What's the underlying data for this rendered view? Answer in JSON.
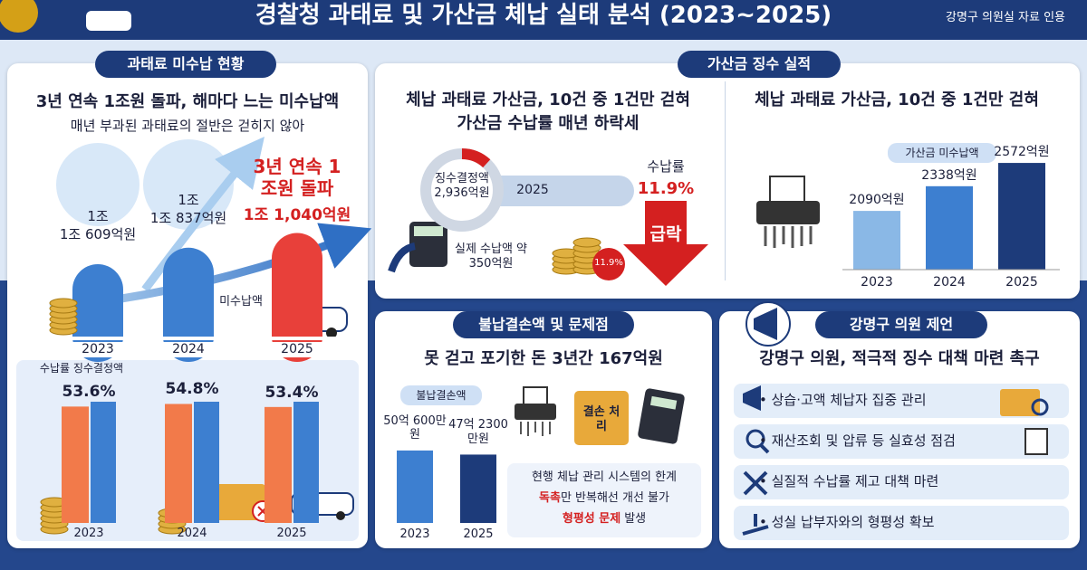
{
  "header": {
    "title": "경찰청 과태료 및 가산금 체납 실태 분석 (2023~2025)",
    "source": "강명구 의원실 자료 인용"
  },
  "unpaid": {
    "tab": "과태료 미수납 현황",
    "headline": "3년 연속 1조원 돌파, 해마다 느는 미수납액",
    "subtitle": "매년 부과된 과태료의 절반은 걷히지 않아",
    "years": [
      "2023",
      "2024",
      "2025"
    ],
    "amount_tops": [
      "1조",
      "1조"
    ],
    "highlight": "3년 연속 1조원 돌파",
    "amounts": [
      10609,
      10837,
      11040
    ],
    "amount_labels": [
      "1조 609억원",
      "1조 837억원",
      "1조 1,040억원"
    ],
    "series_label": "미수납액",
    "rate_legend": "수납률 징수결정액",
    "rates": [
      53.6,
      54.8,
      53.4
    ],
    "rate_labels": [
      "53.6%",
      "54.8%",
      "53.4%"
    ]
  },
  "surcharge": {
    "tab": "가산금 징수 실적",
    "headline": "체납 과태료 가산금, 10건 중 1건만 걷혀",
    "subheadline": "가산금 수납률 매년 하락세",
    "assessed": "징수결정액 2,936억원",
    "year": "2025",
    "collected": "실제 수납액 약 350억원",
    "rate_title": "수납률",
    "rate": 11.9,
    "rate_label": "11.9%",
    "drop": "급락",
    "chart_title": "체납 과태료 가산금, 10건 중 1건만 걷혀",
    "chart_legend": "가산금 미수납액",
    "years": [
      "2023",
      "2024",
      "2025"
    ],
    "values": [
      2090,
      2338,
      2572
    ],
    "value_labels": [
      "2090억원",
      "2338억원",
      "2572억원"
    ]
  },
  "writeoff": {
    "tab": "불납결손액 및 문제점",
    "headline": "못 걷고 포기한 돈 3년간 167억원",
    "legend": "불납결손액",
    "years": [
      "2023",
      "2025"
    ],
    "values": [
      50.06,
      47.23
    ],
    "value_labels": [
      "50억 600만원",
      "47억 2300만원"
    ],
    "folder_label": "결손 처리",
    "notes": [
      {
        "text": "현행 체납 관리 시스템의 한계"
      },
      {
        "highlight": "독촉",
        "text": "만 반복해선 개선 불가"
      },
      {
        "highlight": "형평성 문제",
        "text": "발생"
      }
    ]
  },
  "proposal": {
    "tab": "강명구 의원 제언",
    "headline": "강명구 의원, 적극적 징수 대책 마련 촉구",
    "items": [
      "상습·고액 체납자 집중 관리",
      "재산조회 및 압류 등 실효성 점검",
      "실질적 수납률 제고 대책 마련",
      "성실 납부자와의 형평성 확보"
    ]
  }
}
